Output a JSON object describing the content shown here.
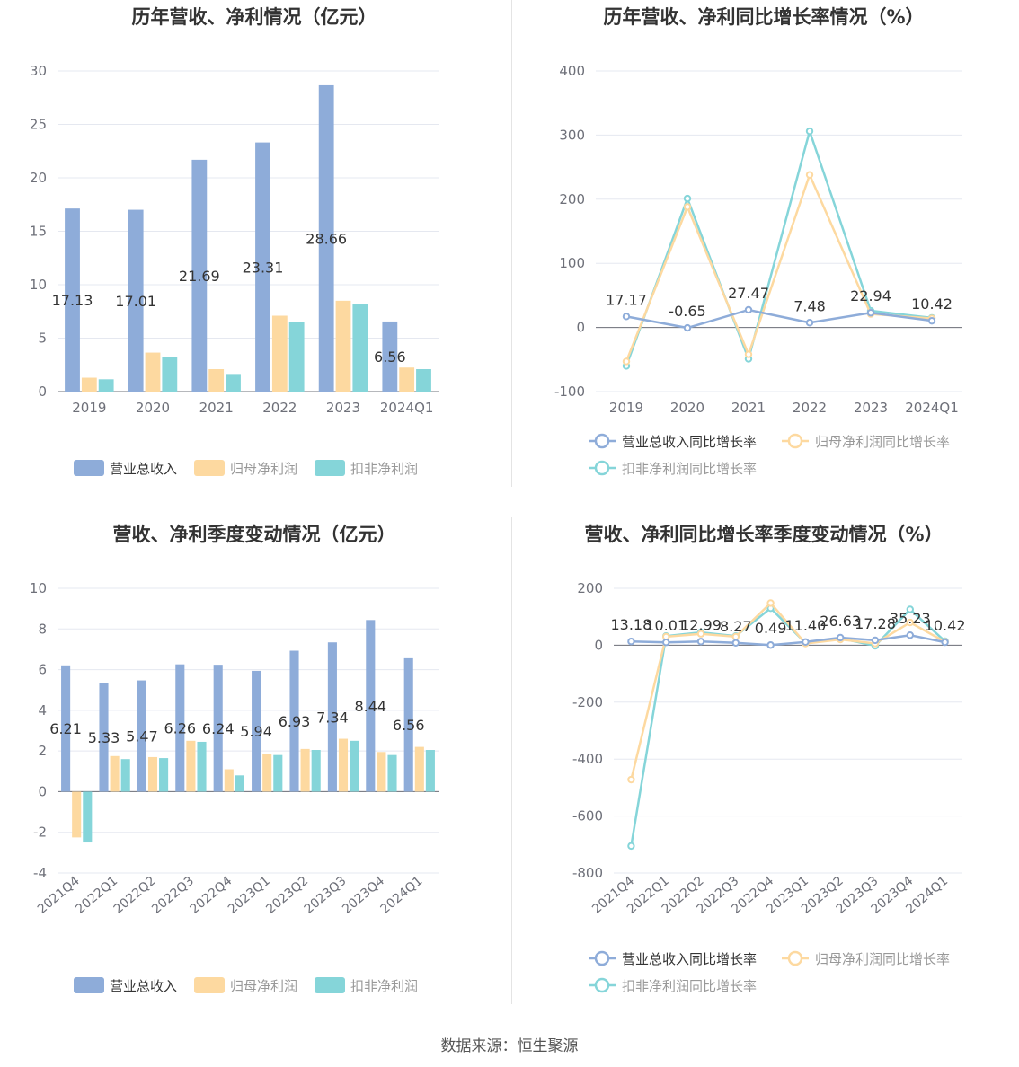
{
  "colors": {
    "revenue": "#8eacd9",
    "net_profit": "#fdd9a0",
    "deducted_profit": "#85d5d9",
    "grid": "#e5e8f0",
    "axis": "#6e7079",
    "title": "#333333",
    "label": "#333333"
  },
  "footer": {
    "source": "数据来源：恒生聚源"
  },
  "chart_data": [
    {
      "id": "annual-amounts",
      "type": "bar",
      "title": "历年营收、净利情况（亿元）",
      "categories": [
        "2019",
        "2020",
        "2021",
        "2022",
        "2023",
        "2024Q1"
      ],
      "series": [
        {
          "name": "营业总收入",
          "values": [
            17.13,
            17.01,
            21.69,
            23.31,
            28.66,
            6.56
          ]
        },
        {
          "name": "归母净利润",
          "values": [
            1.3,
            3.65,
            2.1,
            7.1,
            8.5,
            2.25
          ]
        },
        {
          "name": "扣非净利润",
          "values": [
            1.15,
            3.2,
            1.65,
            6.5,
            8.15,
            2.1
          ]
        }
      ],
      "data_labels": [
        "17.13",
        "17.01",
        "21.69",
        "23.31",
        "28.66",
        "6.56"
      ],
      "y_ticks": [
        "0",
        "5",
        "10",
        "15",
        "20",
        "25",
        "30"
      ],
      "ylim": [
        0,
        30
      ],
      "grid": true,
      "legend": "bottom"
    },
    {
      "id": "annual-growth",
      "type": "line",
      "title": "历年营收、净利同比增长率情况（%）",
      "categories": [
        "2019",
        "2020",
        "2021",
        "2022",
        "2023",
        "2024Q1"
      ],
      "series": [
        {
          "name": "营业总收入同比增长率",
          "values": [
            17.17,
            -0.65,
            27.47,
            7.48,
            22.94,
            10.42
          ]
        },
        {
          "name": "归母净利润同比增长率",
          "values": [
            -53,
            188,
            -42,
            238,
            21,
            14
          ]
        },
        {
          "name": "扣非净利润同比增长率",
          "values": [
            -60,
            201,
            -49,
            306,
            26,
            15
          ]
        }
      ],
      "data_labels": [
        "17.17",
        "-0.65",
        "27.47",
        "7.48",
        "22.94",
        "10.42"
      ],
      "y_ticks": [
        "-100",
        "0",
        "100",
        "200",
        "300",
        "400"
      ],
      "ylim": [
        -100,
        400
      ],
      "grid": true,
      "legend": "bottom"
    },
    {
      "id": "quarterly-amounts",
      "type": "bar",
      "title": "营收、净利季度变动情况（亿元）",
      "categories": [
        "2021Q4",
        "2022Q1",
        "2022Q2",
        "2022Q3",
        "2022Q4",
        "2023Q1",
        "2023Q2",
        "2023Q3",
        "2023Q4",
        "2024Q1"
      ],
      "series": [
        {
          "name": "营业总收入",
          "values": [
            6.21,
            5.33,
            5.47,
            6.26,
            6.24,
            5.94,
            6.93,
            7.34,
            8.44,
            6.56
          ]
        },
        {
          "name": "归母净利润",
          "values": [
            -2.25,
            1.75,
            1.7,
            2.5,
            1.1,
            1.85,
            2.1,
            2.6,
            1.95,
            2.2
          ]
        },
        {
          "name": "扣非净利润",
          "values": [
            -2.5,
            1.6,
            1.65,
            2.45,
            0.8,
            1.8,
            2.05,
            2.5,
            1.8,
            2.05
          ]
        }
      ],
      "data_labels": [
        "6.21",
        "5.33",
        "5.47",
        "6.26",
        "6.24",
        "5.94",
        "6.93",
        "7.34",
        "8.44",
        "6.56"
      ],
      "y_ticks": [
        "-4",
        "-2",
        "0",
        "2",
        "4",
        "6",
        "8",
        "10"
      ],
      "ylim": [
        -4,
        10
      ],
      "grid": true,
      "legend": "bottom"
    },
    {
      "id": "quarterly-growth",
      "type": "line",
      "title": "营收、净利同比增长率季度变动情况（%）",
      "categories": [
        "2021Q4",
        "2022Q1",
        "2022Q2",
        "2022Q3",
        "2022Q4",
        "2023Q1",
        "2023Q2",
        "2023Q3",
        "2023Q4",
        "2024Q1"
      ],
      "series": [
        {
          "name": "营业总收入同比增长率",
          "values": [
            13.18,
            10.01,
            12.99,
            8.27,
            0.49,
            11.4,
            26.63,
            17.28,
            35.23,
            10.42
          ]
        },
        {
          "name": "归母净利润同比增长率",
          "values": [
            -472,
            30,
            40,
            30,
            148,
            6,
            20,
            6,
            80,
            12
          ]
        },
        {
          "name": "扣非净利润同比增长率",
          "values": [
            -705,
            32,
            45,
            32,
            130,
            8,
            24,
            -2,
            126,
            14
          ]
        }
      ],
      "data_labels": [
        "13.18",
        "10.01",
        "12.99",
        "8.27",
        "0.49",
        "11.40",
        "26.63",
        "17.28",
        "35.23",
        "10.42"
      ],
      "y_ticks": [
        "-800",
        "-600",
        "-400",
        "-200",
        "0",
        "200"
      ],
      "ylim": [
        -800,
        200
      ],
      "grid": true,
      "legend": "bottom"
    }
  ]
}
